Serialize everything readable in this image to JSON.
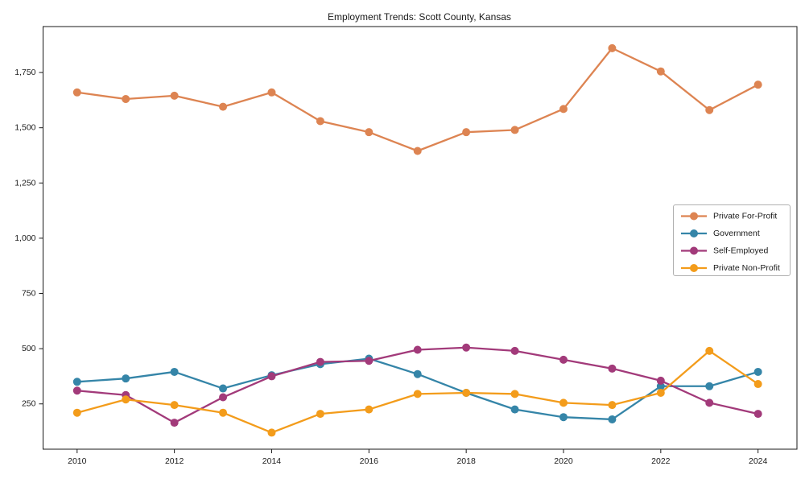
{
  "chart_data": {
    "type": "line",
    "title": "Employment Trends: Scott County, Kansas",
    "xlabel": "",
    "ylabel": "",
    "x": [
      2010,
      2011,
      2012,
      2013,
      2014,
      2015,
      2016,
      2017,
      2018,
      2019,
      2020,
      2021,
      2022,
      2023,
      2024
    ],
    "series": [
      {
        "name": "Private For-Profit",
        "color": "#dd8452",
        "values": [
          1660,
          1630,
          1645,
          1595,
          1660,
          1530,
          1480,
          1395,
          1480,
          1490,
          1585,
          1860,
          1755,
          1580,
          1695
        ]
      },
      {
        "name": "Government",
        "color": "#3585a8",
        "values": [
          350,
          365,
          395,
          320,
          380,
          430,
          455,
          385,
          300,
          225,
          190,
          180,
          330,
          330,
          395
        ]
      },
      {
        "name": "Self-Employed",
        "color": "#a23a7a",
        "values": [
          310,
          290,
          165,
          280,
          375,
          440,
          445,
          495,
          505,
          490,
          450,
          410,
          355,
          255,
          205
        ]
      },
      {
        "name": "Private Non-Profit",
        "color": "#f39c1b",
        "values": [
          210,
          270,
          245,
          210,
          120,
          205,
          225,
          295,
          300,
          295,
          255,
          245,
          300,
          490,
          340
        ]
      }
    ],
    "x_ticks": [
      2010,
      2012,
      2014,
      2016,
      2018,
      2020,
      2022,
      2024
    ],
    "x_tick_labels": [
      "2010",
      "2012",
      "2014",
      "2016",
      "2018",
      "2020",
      "2022",
      "2024"
    ],
    "y_ticks": [
      250,
      500,
      750,
      1000,
      1250,
      1500,
      1750
    ],
    "y_tick_labels": [
      "250",
      "500",
      "750",
      "1,000",
      "1,250",
      "1,500",
      "1,750"
    ],
    "xlim": [
      2009.3,
      2024.8
    ],
    "ylim": [
      45,
      1958
    ],
    "grid": false,
    "legend_position": "center right",
    "marker": "circle"
  },
  "colors": {
    "background": "#ffffff",
    "axis": "#1a1a1a",
    "tick_text": "#1a1a1a",
    "legend_border": "#b0b0b0",
    "legend_background": "#ffffff"
  }
}
